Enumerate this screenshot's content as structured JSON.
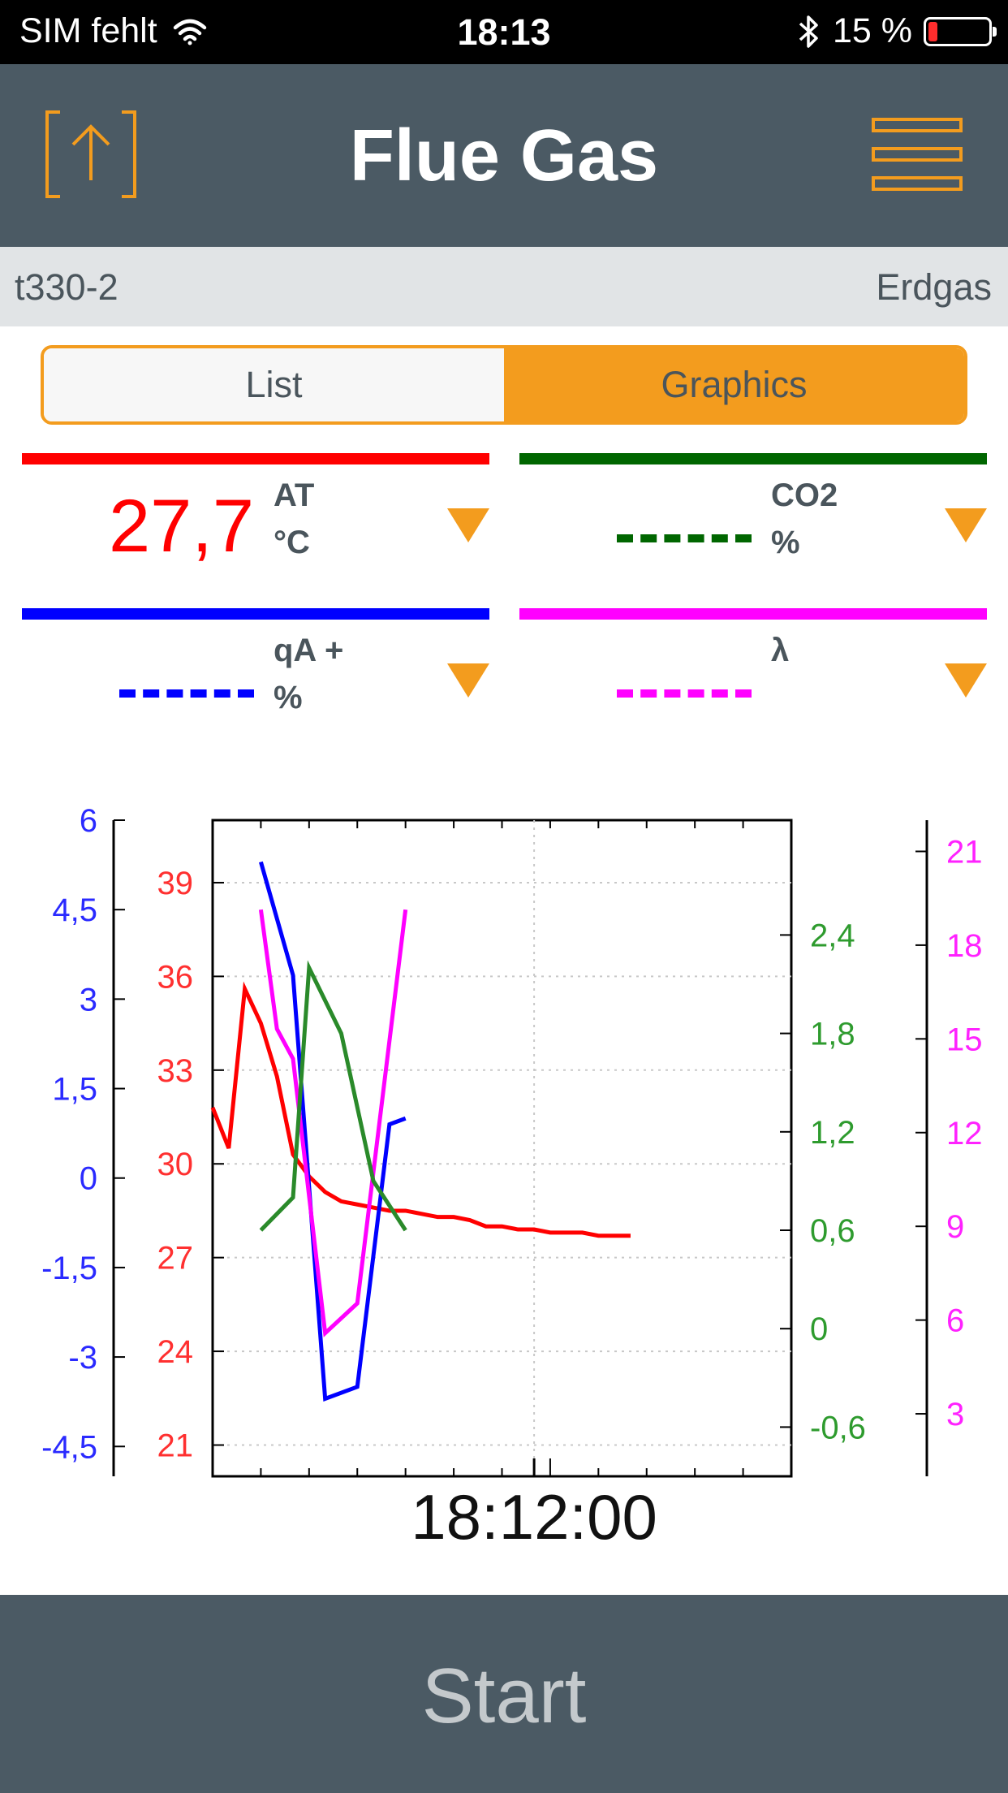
{
  "status_bar": {
    "carrier": "SIM fehlt",
    "time": "18:13",
    "battery": "15 %",
    "battery_level": 0.15,
    "icons": [
      "wifi-icon",
      "bluetooth-icon",
      "battery-icon"
    ]
  },
  "header": {
    "title": "Flue Gas",
    "left_icon": "export-icon",
    "right_icon": "menu-icon",
    "accent": "#f39c1e",
    "background": "#4b5a64"
  },
  "device_bar": {
    "device": "t330-2",
    "fuel": "Erdgas"
  },
  "tabs": {
    "list_label": "List",
    "graphics_label": "Graphics",
    "selected": "Graphics"
  },
  "channels": [
    {
      "name": "AT",
      "unit": "°C",
      "value": "27,7",
      "color": "#ff0000"
    },
    {
      "name": "CO2",
      "unit": "%",
      "value": "",
      "color": "#006600"
    },
    {
      "name": "qA +",
      "unit": "%",
      "value": "",
      "color": "#0000ff"
    },
    {
      "name": "λ",
      "unit": "",
      "value": "",
      "color": "#ff00ff"
    }
  ],
  "chart_data": {
    "type": "line",
    "xlabel": "18:12:00",
    "grid": true,
    "axes": {
      "left_outer": {
        "color": "#2a2aff",
        "min": -5.0,
        "max": 6.0,
        "ticks": [
          "6",
          "4,5",
          "3",
          "1,5",
          "0",
          "-1,5",
          "-3",
          "-4,5"
        ],
        "tick_values": [
          6,
          4.5,
          3,
          1.5,
          0,
          -1.5,
          -3,
          -4.5
        ]
      },
      "left_inner": {
        "color": "#ff3030",
        "min": 20.0,
        "max": 41.0,
        "ticks": [
          "39",
          "36",
          "33",
          "30",
          "27",
          "24",
          "21"
        ],
        "tick_values": [
          39,
          36,
          33,
          30,
          27,
          24,
          21
        ]
      },
      "right_inner": {
        "color": "#2e9b2e",
        "min": -0.9,
        "max": 3.1,
        "ticks": [
          "2,4",
          "1,8",
          "1,2",
          "0,6",
          "0",
          "-0,6"
        ],
        "tick_values": [
          2.4,
          1.8,
          1.2,
          0.6,
          0,
          -0.6
        ]
      },
      "right_outer": {
        "color": "#ff22ff",
        "min": 1.0,
        "max": 22.0,
        "ticks": [
          "21",
          "18",
          "15",
          "12",
          "9",
          "6",
          "3"
        ],
        "tick_values": [
          21,
          18,
          15,
          12,
          9,
          6,
          3
        ]
      }
    },
    "series": [
      {
        "axis": "left_inner",
        "color": "#ff0000",
        "x": [
          0,
          1,
          2,
          3,
          4,
          5,
          6,
          7,
          8,
          9,
          10,
          11,
          12,
          13,
          14,
          15,
          16,
          17,
          18,
          19,
          20,
          21,
          22,
          23,
          24,
          25,
          26
        ],
        "y": [
          31.8,
          30.5,
          35.6,
          34.5,
          32.8,
          30.3,
          29.6,
          29.1,
          28.8,
          28.7,
          28.6,
          28.5,
          28.5,
          28.4,
          28.3,
          28.3,
          28.2,
          28.0,
          28.0,
          27.9,
          27.9,
          27.8,
          27.8,
          27.8,
          27.7,
          27.7,
          27.7
        ]
      },
      {
        "axis": "left_outer",
        "color": "#0000ff",
        "x": [
          3,
          5,
          7,
          9,
          11,
          12
        ],
        "y": [
          5.3,
          3.4,
          -3.7,
          -3.5,
          0.9,
          1.0
        ]
      },
      {
        "axis": "left_outer",
        "color": "#ff00ff",
        "x": [
          3,
          4,
          5,
          7,
          9,
          12
        ],
        "y": [
          4.5,
          2.5,
          2.0,
          -2.6,
          -2.1,
          4.5
        ]
      },
      {
        "axis": "right_inner",
        "color": "#2a8a2a",
        "x": [
          3,
          5,
          6,
          8,
          10,
          12
        ],
        "y": [
          0.6,
          0.8,
          2.2,
          1.8,
          0.9,
          0.6
        ]
      }
    ]
  },
  "start_button": {
    "label": "Start"
  }
}
